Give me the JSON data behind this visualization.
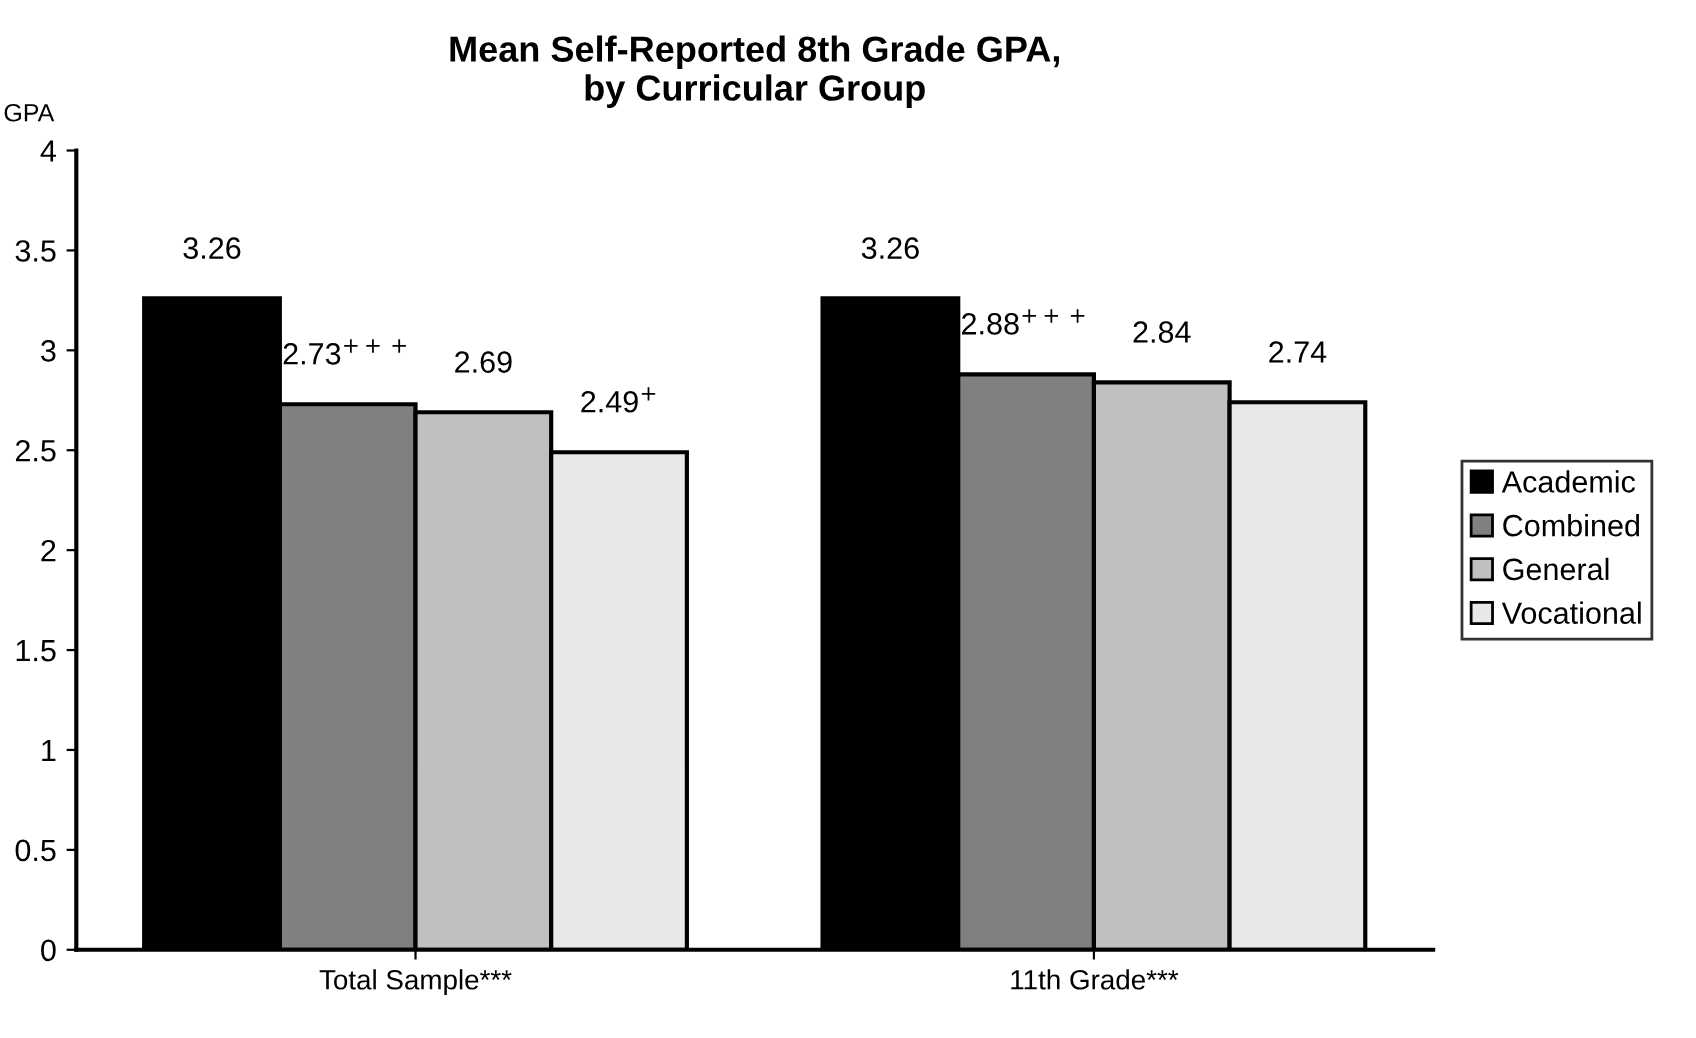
{
  "chart_data": {
    "type": "bar",
    "title": "Mean Self-Reported 8th Grade GPA,\nby Curricular Group",
    "ylabel": "GPA",
    "categories": [
      "Total Sample***",
      "11th Grade***"
    ],
    "series": [
      {
        "name": "Academic",
        "color": "#000000",
        "values": [
          3.26,
          3.26
        ],
        "value_labels": [
          "3.26",
          "3.26"
        ]
      },
      {
        "name": "Combined",
        "color": "#808080",
        "values": [
          2.73,
          2.88
        ],
        "value_labels": [
          "2.73$^{+++}$",
          "2.88$^{+++}$"
        ]
      },
      {
        "name": "General",
        "color": "#c0c0c0",
        "values": [
          2.69,
          2.84
        ],
        "value_labels": [
          "2.69",
          "2.84"
        ]
      },
      {
        "name": "Vocational",
        "color": "#e8e8e8",
        "values": [
          2.49,
          2.74
        ],
        "value_labels": [
          "2.49$^{+}$",
          "2.74"
        ]
      }
    ],
    "ylim": [
      0,
      4
    ],
    "yticks": [
      0,
      0.5,
      1,
      1.5,
      2,
      2.5,
      3,
      3.5,
      4
    ],
    "grid": false,
    "legend": "right"
  }
}
